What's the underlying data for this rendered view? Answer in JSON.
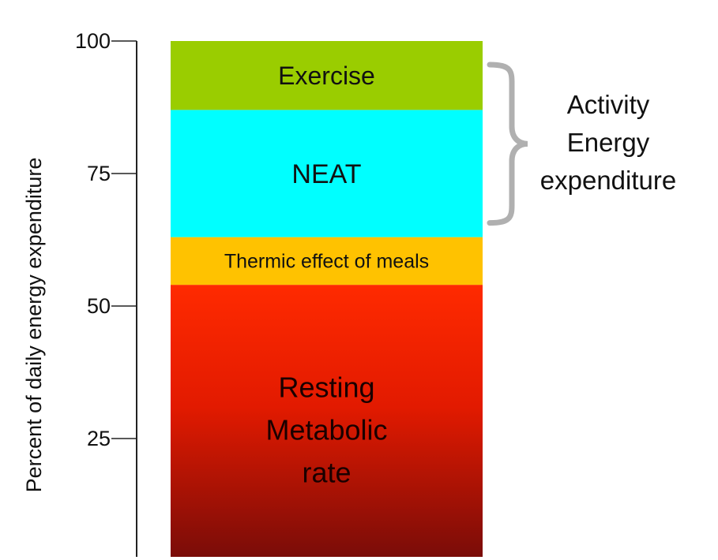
{
  "chart_data": {
    "type": "bar",
    "stacked": true,
    "ylabel": "Percent of daily energy expenditure",
    "ylim": [
      0,
      100
    ],
    "yticks": [
      25,
      50,
      75,
      100
    ],
    "grid": false,
    "segments": [
      {
        "label_lines": [
          "Resting",
          "Metabolic",
          "rate"
        ],
        "start": 0,
        "end": 54,
        "color_top": "#ff2a00",
        "color_bottom": "#7a0c08"
      },
      {
        "label_lines": [
          "Thermic effect of meals"
        ],
        "start": 54,
        "end": 63,
        "color": "#ffc200"
      },
      {
        "label_lines": [
          "NEAT"
        ],
        "start": 63,
        "end": 87,
        "color": "#00ffff"
      },
      {
        "label_lines": [
          "Exercise"
        ],
        "start": 87,
        "end": 100,
        "color": "#9acd00"
      }
    ],
    "bracket": {
      "label_lines": [
        "Activity",
        "Energy",
        "expenditure"
      ],
      "from": 63,
      "to": 100,
      "color": "#b0b0b0"
    }
  }
}
